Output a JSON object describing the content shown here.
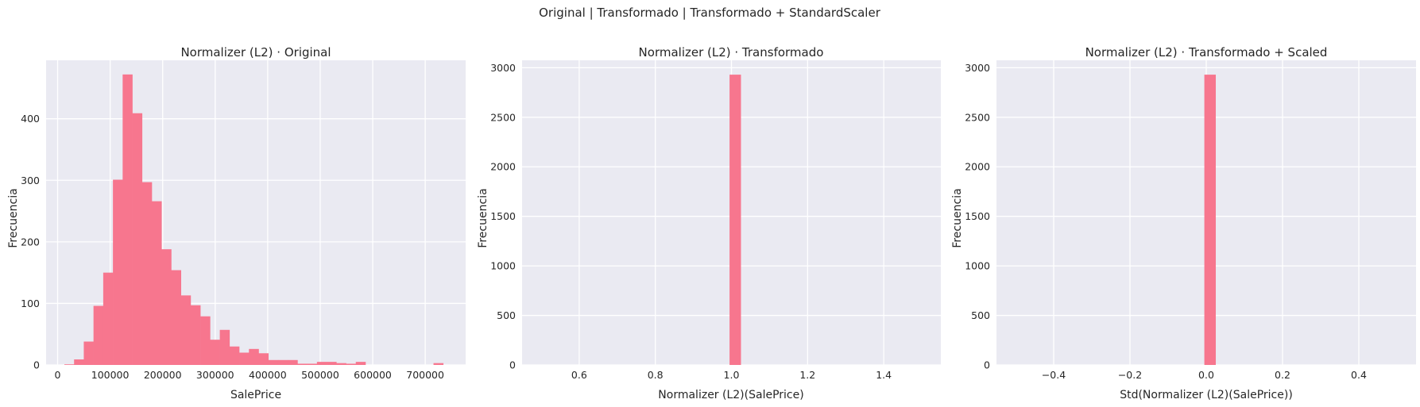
{
  "suptitle": "Original | Transformado | Transformado + StandardScaler",
  "chart_data": [
    {
      "type": "bar",
      "subtype": "histogram",
      "title": "Normalizer (L2) · Original",
      "xlabel": "SalePrice",
      "ylabel": "Frecuencia",
      "xlim": [
        -22000,
        777000
      ],
      "ylim": [
        0,
        495
      ],
      "xticks": [
        0,
        100000,
        200000,
        300000,
        400000,
        500000,
        600000,
        700000
      ],
      "xtick_labels": [
        "0",
        "100000",
        "200000",
        "300000",
        "400000",
        "500000",
        "600000",
        "700000"
      ],
      "yticks": [
        0,
        100,
        200,
        300,
        400
      ],
      "ytick_labels": [
        "0",
        "100",
        "200",
        "300",
        "400"
      ],
      "bin_width": 18500,
      "bin_start": 12789,
      "values": [
        1,
        9,
        38,
        96,
        150,
        301,
        472,
        409,
        297,
        266,
        188,
        154,
        113,
        97,
        79,
        41,
        57,
        30,
        20,
        26,
        19,
        8,
        8,
        8,
        2,
        2,
        5,
        5,
        3,
        2,
        5,
        0,
        0,
        0,
        0,
        0,
        0,
        0,
        3,
        0
      ],
      "color": "#f7768e",
      "grid": true
    },
    {
      "type": "bar",
      "subtype": "histogram",
      "title": "Normalizer (L2) · Transformado",
      "xlabel": "Normalizer (L2)(SalePrice)",
      "ylabel": "Frecuencia",
      "xlim": [
        0.45,
        1.55
      ],
      "ylim": [
        0,
        3075
      ],
      "xticks": [
        0.6,
        0.8,
        1.0,
        1.2,
        1.4
      ],
      "xtick_labels": [
        "0.6",
        "0.8",
        "1.0",
        "1.2",
        "1.4"
      ],
      "yticks": [
        0,
        500,
        1000,
        1500,
        2000,
        2500,
        3000
      ],
      "ytick_labels": [
        "0",
        "500",
        "1000",
        "1500",
        "2000",
        "2500",
        "3000"
      ],
      "bar_left": 0.995,
      "bar_right": 1.025,
      "value": 2930,
      "color": "#f7768e",
      "grid": true
    },
    {
      "type": "bar",
      "subtype": "histogram",
      "title": "Normalizer (L2) · Transformado + Scaled",
      "xlabel": "Std(Normalizer (L2)(SalePrice))",
      "ylabel": "Frecuencia",
      "xlim": [
        -0.55,
        0.55
      ],
      "ylim": [
        0,
        3075
      ],
      "xticks": [
        -0.4,
        -0.2,
        0.0,
        0.2,
        0.4
      ],
      "xtick_labels": [
        "−0.4",
        "−0.2",
        "0.0",
        "0.2",
        "0.4"
      ],
      "yticks": [
        0,
        500,
        1000,
        1500,
        2000,
        2500,
        3000
      ],
      "ytick_labels": [
        "0",
        "500",
        "1000",
        "1500",
        "2000",
        "2500",
        "3000"
      ],
      "bar_left": -0.005,
      "bar_right": 0.025,
      "value": 2930,
      "color": "#f7768e",
      "grid": true
    }
  ]
}
